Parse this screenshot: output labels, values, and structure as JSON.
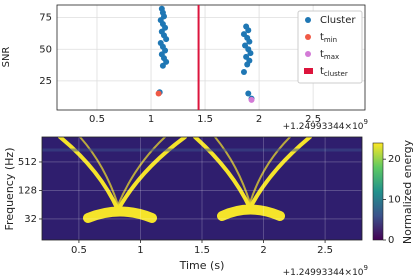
{
  "chart_data": [
    {
      "type": "scatter",
      "ylabel": "SNR",
      "offset_text": "+1.24993344×10",
      "offset_exp": "9",
      "xlim": [
        0.13,
        2.98
      ],
      "xticks": [
        0.5,
        1.0,
        1.5,
        2.0,
        2.5
      ],
      "ylim": [
        2,
        85
      ],
      "yticks": [
        25,
        50,
        75
      ],
      "grid": true,
      "series": [
        {
          "name": "Cluster",
          "color": "#1f77b4",
          "x": [
            1.1,
            1.11,
            1.12,
            1.09,
            1.11,
            1.13,
            1.1,
            1.12,
            1.14,
            1.09,
            1.11,
            1.13,
            1.1,
            1.12,
            1.14,
            1.11,
            1.08,
            1.88,
            1.9,
            1.86,
            1.89,
            1.91,
            1.87,
            1.9,
            1.92,
            1.88,
            1.91,
            1.89,
            1.86,
            1.9,
            1.93
          ],
          "values": [
            82,
            79,
            76,
            73,
            70,
            67,
            64,
            61,
            58,
            55,
            52,
            49,
            46,
            43,
            40,
            37,
            16,
            68,
            65,
            62,
            59,
            56,
            53,
            50,
            47,
            44,
            41,
            38,
            32,
            15,
            11
          ]
        },
        {
          "name": "t",
          "sub": "min",
          "color": "#f05a46",
          "x": [
            1.07
          ],
          "values": [
            15
          ]
        },
        {
          "name": "t",
          "sub": "max",
          "color": "#d37ad6",
          "x": [
            1.93
          ],
          "values": [
            10
          ]
        }
      ],
      "vline": {
        "name": "t",
        "sub": "cluster",
        "color": "#dc143c",
        "x": 1.44
      }
    },
    {
      "type": "spectrogram",
      "xlabel": "Time (s)",
      "ylabel": "Frequency (Hz)",
      "offset_text": "+1.24993344×10",
      "offset_exp": "9",
      "xlim": [
        0.2,
        2.8
      ],
      "xticks": [
        0.5,
        1.0,
        1.5,
        2.0,
        2.5
      ],
      "ylim": [
        11.5,
        1725
      ],
      "yticks": [
        32,
        128,
        512
      ],
      "log_y": true,
      "colorbar": {
        "label": "Normalized energy",
        "lim": [
          0,
          24
        ],
        "ticks": [
          0,
          10,
          20
        ]
      }
    }
  ]
}
